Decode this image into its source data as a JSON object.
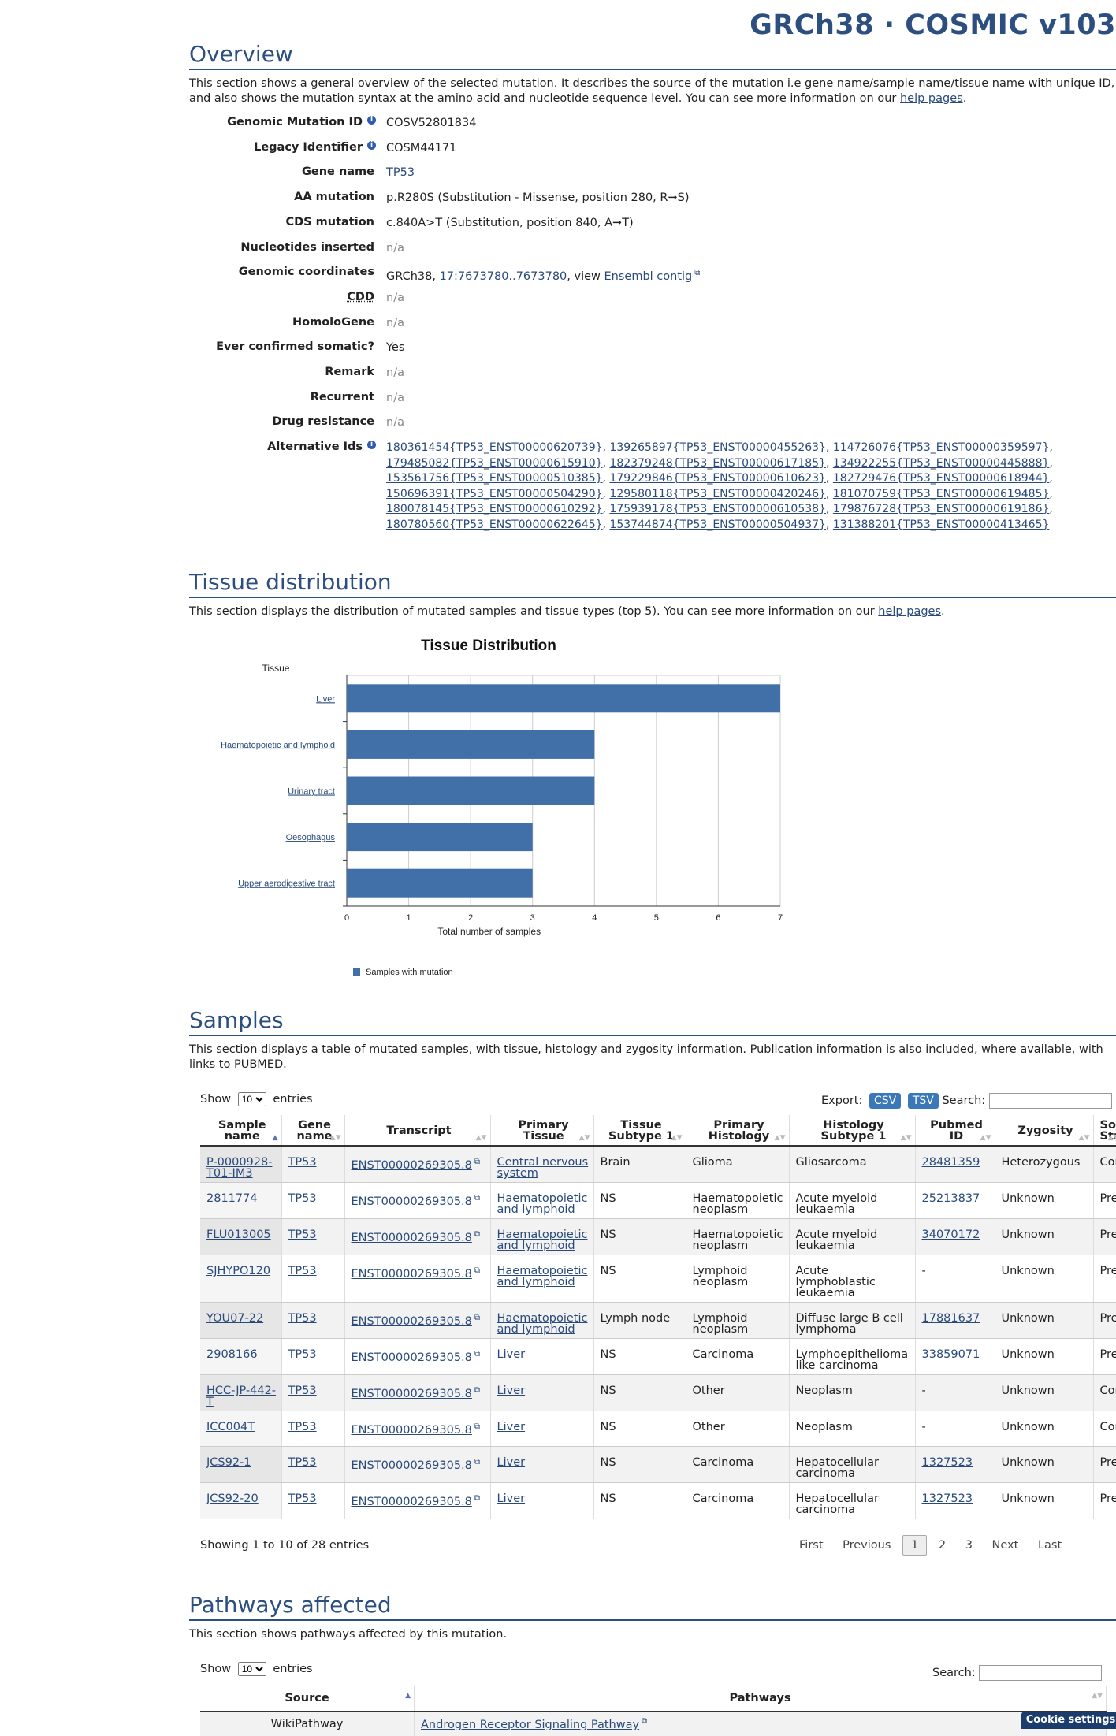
{
  "header": {
    "title": "GRCh38 · COSMIC v103"
  },
  "overview": {
    "title": "Overview",
    "desc_pre": "This section shows a general overview of the selected mutation. It describes the source of the mutation i.e gene name/sample name/tissue name with unique ID, and also shows the mutation syntax at the amino acid and nucleotide sequence level. You can see more information on our ",
    "desc_link": "help pages",
    "desc_post": ".",
    "rows": {
      "genomic_mutation_id": {
        "label": "Genomic Mutation ID",
        "value": "COSV52801834"
      },
      "legacy_identifier": {
        "label": "Legacy Identifier",
        "value": "COSM44171"
      },
      "gene_name": {
        "label": "Gene name",
        "value": "TP53"
      },
      "aa_mutation": {
        "label": "AA mutation",
        "value": "p.R280S (Substitution - Missense, position 280, R➞S)"
      },
      "cds_mutation": {
        "label": "CDS mutation",
        "value": "c.840A>T (Substitution, position 840, A➞T)"
      },
      "nucleotides_inserted": {
        "label": "Nucleotides inserted",
        "value": "n/a"
      },
      "genomic_coordinates": {
        "label": "Genomic coordinates",
        "pre": "GRCh38, ",
        "coord_link": "17:7673780..7673780",
        "mid": ", view ",
        "ensembl_link": "Ensembl contig"
      },
      "cdd": {
        "label": "CDD",
        "value": "n/a"
      },
      "homologene": {
        "label": "HomoloGene",
        "value": "n/a"
      },
      "ever_confirmed": {
        "label": "Ever confirmed somatic?",
        "value": "Yes"
      },
      "remark": {
        "label": "Remark",
        "value": "n/a"
      },
      "recurrent": {
        "label": "Recurrent",
        "value": "n/a"
      },
      "drug_resistance": {
        "label": "Drug resistance",
        "value": "n/a"
      },
      "alternative_ids": {
        "label": "Alternative Ids",
        "ids": [
          "180361454{TP53_ENST00000620739}",
          "139265897{TP53_ENST00000455263}",
          "114726076{TP53_ENST00000359597}",
          "179485082{TP53_ENST00000615910}",
          "182379248{TP53_ENST00000617185}",
          "134922255{TP53_ENST00000445888}",
          "153561756{TP53_ENST00000510385}",
          "179229846{TP53_ENST00000610623}",
          "182729476{TP53_ENST00000618944}",
          "150696391{TP53_ENST00000504290}",
          "129580118{TP53_ENST00000420246}",
          "181070759{TP53_ENST00000619485}",
          "180078145{TP53_ENST00000610292}",
          "175939178{TP53_ENST00000610538}",
          "179876728{TP53_ENST00000619186}",
          "180780560{TP53_ENST00000622645}",
          "153744874{TP53_ENST00000504937}",
          "131388201{TP53_ENST00000413465}"
        ]
      }
    }
  },
  "tissue": {
    "title": "Tissue distribution",
    "desc_pre": "This section displays the distribution of mutated samples and tissue types (top 5). You can see more information on our ",
    "desc_link": "help pages",
    "desc_post": "."
  },
  "chart_data": {
    "type": "bar",
    "orientation": "horizontal",
    "title": "Tissue Distribution",
    "ylabel": "Tissue",
    "xlabel": "Total number of samples",
    "categories": [
      "Liver",
      "Haematopoietic and lymphoid",
      "Urinary tract",
      "Oesophagus",
      "Upper aerodigestive tract"
    ],
    "series": [
      {
        "name": "Samples with mutation",
        "values": [
          7,
          4,
          4,
          3,
          3
        ],
        "color": "#4170a8"
      }
    ],
    "xlim": [
      0,
      7
    ],
    "xticks": [
      "0",
      "1",
      "2",
      "3",
      "4",
      "5",
      "6",
      "7"
    ],
    "grid": true,
    "legend": "bottom-left"
  },
  "samples": {
    "title": "Samples",
    "desc": "This section displays a table of mutated samples, with tissue, histology and zygosity information. Publication information is also included, where available, with links to PUBMED.",
    "show_label": "Show",
    "entries_value": "10",
    "entries_label": "entries",
    "export_label": "Export:",
    "csv": "CSV",
    "tsv": "TSV",
    "search_label": "Search:",
    "columns": [
      "Sample name",
      "Gene name",
      "Transcript",
      "Primary Tissue",
      "Tissue Subtype 1",
      "Primary Histology",
      "Histology Subtype 1",
      "Pubmed ID",
      "Zygosity",
      "Somatic Status"
    ],
    "rows": [
      [
        "P-0000928-T01-IM3",
        "TP53",
        "ENST00000269305.8",
        "Central nervous system",
        "Brain",
        "Glioma",
        "Gliosarcoma",
        "28481359",
        "Heterozygous",
        "Confirmed Somatic"
      ],
      [
        "2811774",
        "TP53",
        "ENST00000269305.8",
        "Haematopoietic and lymphoid",
        "NS",
        "Haematopoietic neoplasm",
        "Acute myeloid leukaemia",
        "25213837",
        "Unknown",
        "Previously Reported"
      ],
      [
        "FLU013005",
        "TP53",
        "ENST00000269305.8",
        "Haematopoietic and lymphoid",
        "NS",
        "Haematopoietic neoplasm",
        "Acute myeloid leukaemia",
        "34070172",
        "Unknown",
        "Previously Reported"
      ],
      [
        "SJHYPO120",
        "TP53",
        "ENST00000269305.8",
        "Haematopoietic and lymphoid",
        "NS",
        "Lymphoid neoplasm",
        "Acute lymphoblastic leukaemia",
        "-",
        "Unknown",
        "Previously Reported"
      ],
      [
        "YOU07-22",
        "TP53",
        "ENST00000269305.8",
        "Haematopoietic and lymphoid",
        "Lymph node",
        "Lymphoid neoplasm",
        "Diffuse large B cell lymphoma",
        "17881637",
        "Unknown",
        "Previously Reported"
      ],
      [
        "2908166",
        "TP53",
        "ENST00000269305.8",
        "Liver",
        "NS",
        "Carcinoma",
        "Lymphoepithelioma like carcinoma",
        "33859071",
        "Unknown",
        "Previously Reported"
      ],
      [
        "HCC-JP-442-T",
        "TP53",
        "ENST00000269305.8",
        "Liver",
        "NS",
        "Other",
        "Neoplasm",
        "-",
        "Unknown",
        "Confirmed Somatic"
      ],
      [
        "ICC004T",
        "TP53",
        "ENST00000269305.8",
        "Liver",
        "NS",
        "Other",
        "Neoplasm",
        "-",
        "Unknown",
        "Confirmed Somatic"
      ],
      [
        "JCS92-1",
        "TP53",
        "ENST00000269305.8",
        "Liver",
        "NS",
        "Carcinoma",
        "Hepatocellular carcinoma",
        "1327523",
        "Unknown",
        "Previously Reported"
      ],
      [
        "JCS92-20",
        "TP53",
        "ENST00000269305.8",
        "Liver",
        "NS",
        "Carcinoma",
        "Hepatocellular carcinoma",
        "1327523",
        "Unknown",
        "Previously Reported"
      ]
    ],
    "info": "Showing 1 to 10 of 28 entries",
    "pager": {
      "first": "First",
      "previous": "Previous",
      "pages": [
        "1",
        "2",
        "3"
      ],
      "current": "1",
      "next": "Next",
      "last": "Last"
    }
  },
  "pathways": {
    "title": "Pathways affected",
    "desc": "This section shows pathways affected by this mutation.",
    "show_label": "Show",
    "entries_value": "10",
    "entries_label": "entries",
    "search_label": "Search:",
    "columns": [
      "Source",
      "Pathways"
    ],
    "rows": [
      [
        "WikiPathway",
        "Androgen Receptor Signaling Pathway"
      ]
    ]
  },
  "cookie": "Cookie settings"
}
